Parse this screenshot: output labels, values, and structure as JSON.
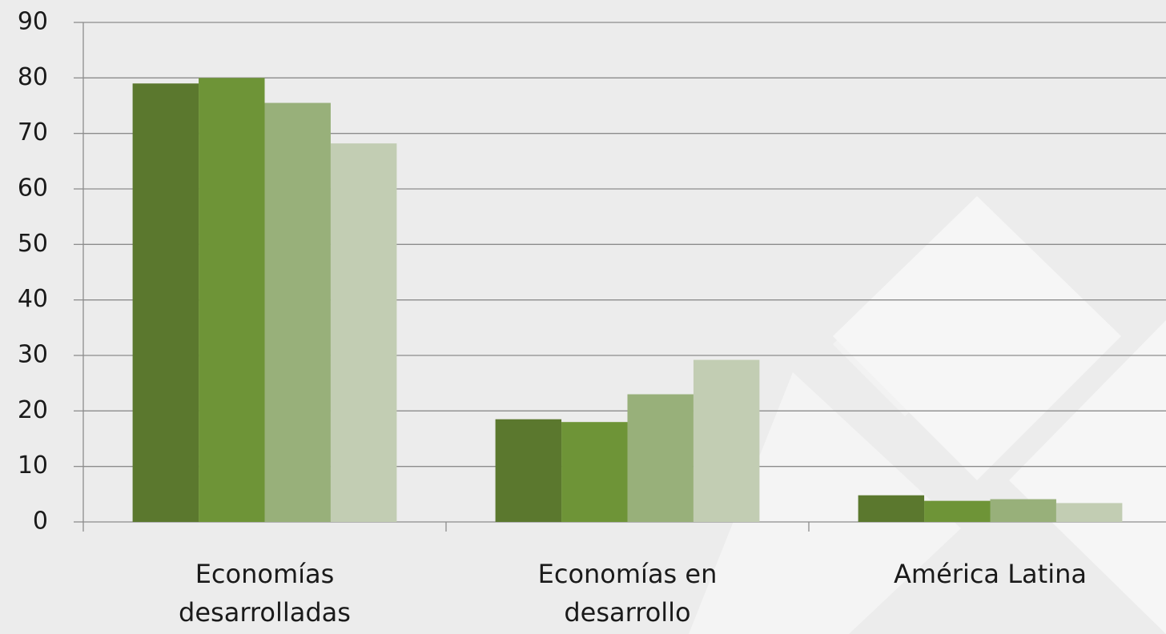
{
  "chart_data": {
    "type": "bar",
    "categories": [
      "Economías desarrolladas",
      "Economías en desarrollo",
      "América Latina"
    ],
    "series": [
      {
        "color": "#5b782e",
        "values": [
          79,
          18.5,
          4.8
        ]
      },
      {
        "color": "#6e9437",
        "values": [
          80,
          18,
          3.8
        ]
      },
      {
        "color": "#98b07a",
        "values": [
          75.5,
          23,
          4.1
        ]
      },
      {
        "color": "#c2cdb3",
        "values": [
          68.2,
          29.2,
          3.4
        ]
      }
    ],
    "ylim": [
      0,
      90
    ],
    "yticks": [
      0,
      10,
      20,
      30,
      40,
      50,
      60,
      70,
      80,
      90
    ],
    "grid": true
  }
}
